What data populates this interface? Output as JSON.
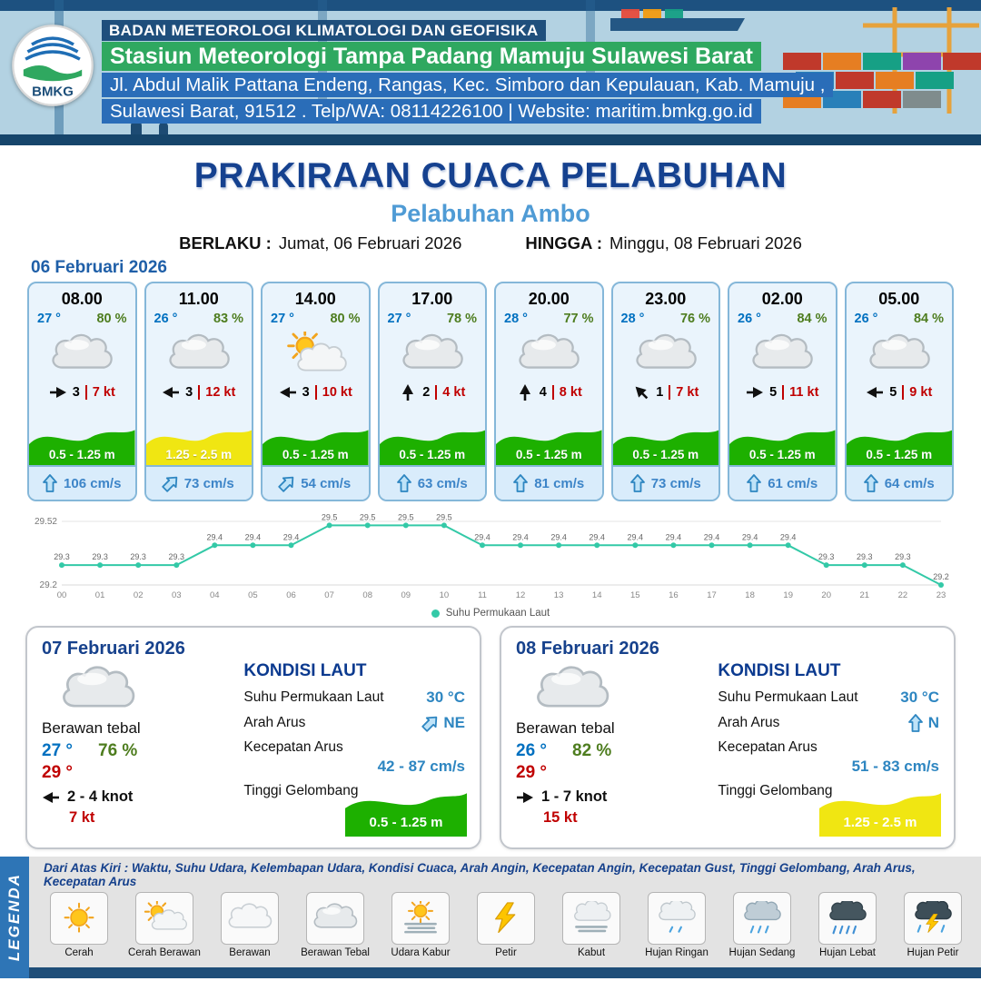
{
  "palette": {
    "header_navy": "#1b4e79",
    "header_green": "#2fa860",
    "header_blue": "#2a6db8",
    "title_navy": "#15418f",
    "subtitle_blue": "#4f9bd5",
    "temp_blue": "#0070c0",
    "humidity_green": "#4e7d1f",
    "alert_red": "#c00000",
    "wave_green": "#1db000",
    "wave_yellow": "#f0e612",
    "current_blue": "#3d85c8",
    "chart_teal": "#33c9a7",
    "ribbon_blue": "#2e75b6",
    "footer_navy": "#1f4e79"
  },
  "header": {
    "logo": "BMKG",
    "org": "BADAN METEOROLOGI KLIMATOLOGI DAN GEOFISIKA",
    "station": "Stasiun Meteorologi Tampa Padang Mamuju Sulawesi Barat",
    "address1": "Jl. Abdul Malik Pattana Endeng, Rangas, Kec. Simboro dan Kepulauan, Kab. Mamuju ,",
    "address2": "Sulawesi Barat, 91512 . Telp/WA: 08114226100 | Website: maritim.bmkg.go.id"
  },
  "title": {
    "main": "PRAKIRAAN CUACA PELABUHAN",
    "subtitle": "Pelabuhan Ambo",
    "valid_from_label": "BERLAKU :",
    "valid_from": "Jumat, 06 Februari 2026",
    "valid_to_label": "HINGGA :",
    "valid_to": "Minggu, 08 Februari 2026"
  },
  "forecast": {
    "date": "06 Februari 2026",
    "cards": [
      {
        "time": "08.00",
        "temp": "27 °",
        "humidity": "80 %",
        "icon": "berawan-tebal",
        "wind_rot": 0,
        "wind_speed": "3",
        "gust": "7 kt",
        "wave": "0.5 - 1.25 m",
        "wave_level": "green",
        "current": "106 cm/s",
        "current_rot": 0
      },
      {
        "time": "11.00",
        "temp": "26 °",
        "humidity": "83 %",
        "icon": "berawan-tebal",
        "wind_rot": 180,
        "wind_speed": "3",
        "gust": "12 kt",
        "wave": "1.25 - 2.5 m",
        "wave_level": "yellow",
        "current": "73 cm/s",
        "current_rot": 45
      },
      {
        "time": "14.00",
        "temp": "27 °",
        "humidity": "80 %",
        "icon": "cerah-berawan",
        "wind_rot": 180,
        "wind_speed": "3",
        "gust": "10 kt",
        "wave": "0.5 - 1.25 m",
        "wave_level": "green",
        "current": "54 cm/s",
        "current_rot": 45
      },
      {
        "time": "17.00",
        "temp": "27 °",
        "humidity": "78 %",
        "icon": "berawan-tebal",
        "wind_rot": -90,
        "wind_speed": "2",
        "gust": "4 kt",
        "wave": "0.5 - 1.25 m",
        "wave_level": "green",
        "current": "63 cm/s",
        "current_rot": 0
      },
      {
        "time": "20.00",
        "temp": "28 °",
        "humidity": "77 %",
        "icon": "berawan-tebal",
        "wind_rot": -90,
        "wind_speed": "4",
        "gust": "8 kt",
        "wave": "0.5 - 1.25 m",
        "wave_level": "green",
        "current": "81 cm/s",
        "current_rot": 0
      },
      {
        "time": "23.00",
        "temp": "28 °",
        "humidity": "76 %",
        "icon": "berawan-tebal",
        "wind_rot": -135,
        "wind_speed": "1",
        "gust": "7 kt",
        "wave": "0.5 - 1.25 m",
        "wave_level": "green",
        "current": "73 cm/s",
        "current_rot": 0
      },
      {
        "time": "02.00",
        "temp": "26 °",
        "humidity": "84 %",
        "icon": "berawan-tebal",
        "wind_rot": 0,
        "wind_speed": "5",
        "gust": "11 kt",
        "wave": "0.5 - 1.25 m",
        "wave_level": "green",
        "current": "61 cm/s",
        "current_rot": 0
      },
      {
        "time": "05.00",
        "temp": "26 °",
        "humidity": "84 %",
        "icon": "berawan-tebal",
        "wind_rot": 180,
        "wind_speed": "5",
        "gust": "9 kt",
        "wave": "0.5 - 1.25 m",
        "wave_level": "green",
        "current": "64 cm/s",
        "current_rot": 0
      }
    ]
  },
  "chart_data": {
    "type": "line",
    "x": [
      "00",
      "01",
      "02",
      "03",
      "04",
      "05",
      "06",
      "07",
      "08",
      "09",
      "10",
      "11",
      "12",
      "13",
      "14",
      "15",
      "16",
      "17",
      "18",
      "19",
      "20",
      "21",
      "22",
      "23"
    ],
    "series": [
      {
        "name": "Suhu Permukaan Laut",
        "values": [
          29.3,
          29.3,
          29.3,
          29.3,
          29.4,
          29.4,
          29.4,
          29.5,
          29.5,
          29.5,
          29.5,
          29.4,
          29.4,
          29.4,
          29.4,
          29.4,
          29.4,
          29.4,
          29.4,
          29.4,
          29.3,
          29.3,
          29.3,
          29.2
        ]
      }
    ],
    "ylim": [
      29.2,
      29.52
    ],
    "yticks": [
      "29.52",
      "29.2"
    ],
    "line_color": "#33c9a7",
    "legend_position": "bottom",
    "grid": false
  },
  "days": [
    {
      "date": "07 Februari 2026",
      "condition": "Berawan tebal",
      "icon": "berawan-tebal",
      "temp": "27 °",
      "humidity": "76 %",
      "temp_max": "29 °",
      "wind": "2 - 4 knot",
      "wind_rot": 180,
      "gust": "7 kt",
      "sea": {
        "title": "KONDISI LAUT",
        "sst_label": "Suhu Permukaan Laut",
        "sst": "30 °C",
        "dir_label": "Arah Arus",
        "dir": "NE",
        "dir_rot": 45,
        "speed_label": "Kecepatan Arus",
        "speed": "42 - 87 cm/s",
        "wave_label": "Tinggi Gelombang",
        "wave": "0.5 - 1.25 m",
        "wave_level": "green"
      }
    },
    {
      "date": "08 Februari 2026",
      "condition": "Berawan tebal",
      "icon": "berawan-tebal",
      "temp": "26 °",
      "humidity": "82 %",
      "temp_max": "29 °",
      "wind": "1 - 7 knot",
      "wind_rot": 0,
      "gust": "15 kt",
      "sea": {
        "title": "KONDISI LAUT",
        "sst_label": "Suhu Permukaan Laut",
        "sst": "30 °C",
        "dir_label": "Arah Arus",
        "dir": "N",
        "dir_rot": 0,
        "speed_label": "Kecepatan Arus",
        "speed": "51 - 83 cm/s",
        "wave_label": "Tinggi Gelombang",
        "wave": "1.25 - 2.5 m",
        "wave_level": "yellow"
      }
    }
  ],
  "legend": {
    "ribbon": "LEGENDA",
    "note": "Dari Atas Kiri : Waktu, Suhu Udara, Kelembapan Udara, Kondisi Cuaca, Arah Angin, Kecepatan Angin, Kecepatan Gust, Tinggi Gelombang, Arah Arus, Kecepatan Arus",
    "items": [
      {
        "label": "Cerah",
        "icon": "cerah"
      },
      {
        "label": "Cerah Berawan",
        "icon": "cerah-berawan"
      },
      {
        "label": "Berawan",
        "icon": "berawan"
      },
      {
        "label": "Berawan Tebal",
        "icon": "berawan-tebal"
      },
      {
        "label": "Udara Kabur",
        "icon": "udara-kabur"
      },
      {
        "label": "Petir",
        "icon": "petir"
      },
      {
        "label": "Kabut",
        "icon": "kabut"
      },
      {
        "label": "Hujan Ringan",
        "icon": "hujan-ringan"
      },
      {
        "label": "Hujan Sedang",
        "icon": "hujan-sedang"
      },
      {
        "label": "Hujan Lebat",
        "icon": "hujan-lebat"
      },
      {
        "label": "Hujan Petir",
        "icon": "hujan-petir"
      }
    ]
  }
}
